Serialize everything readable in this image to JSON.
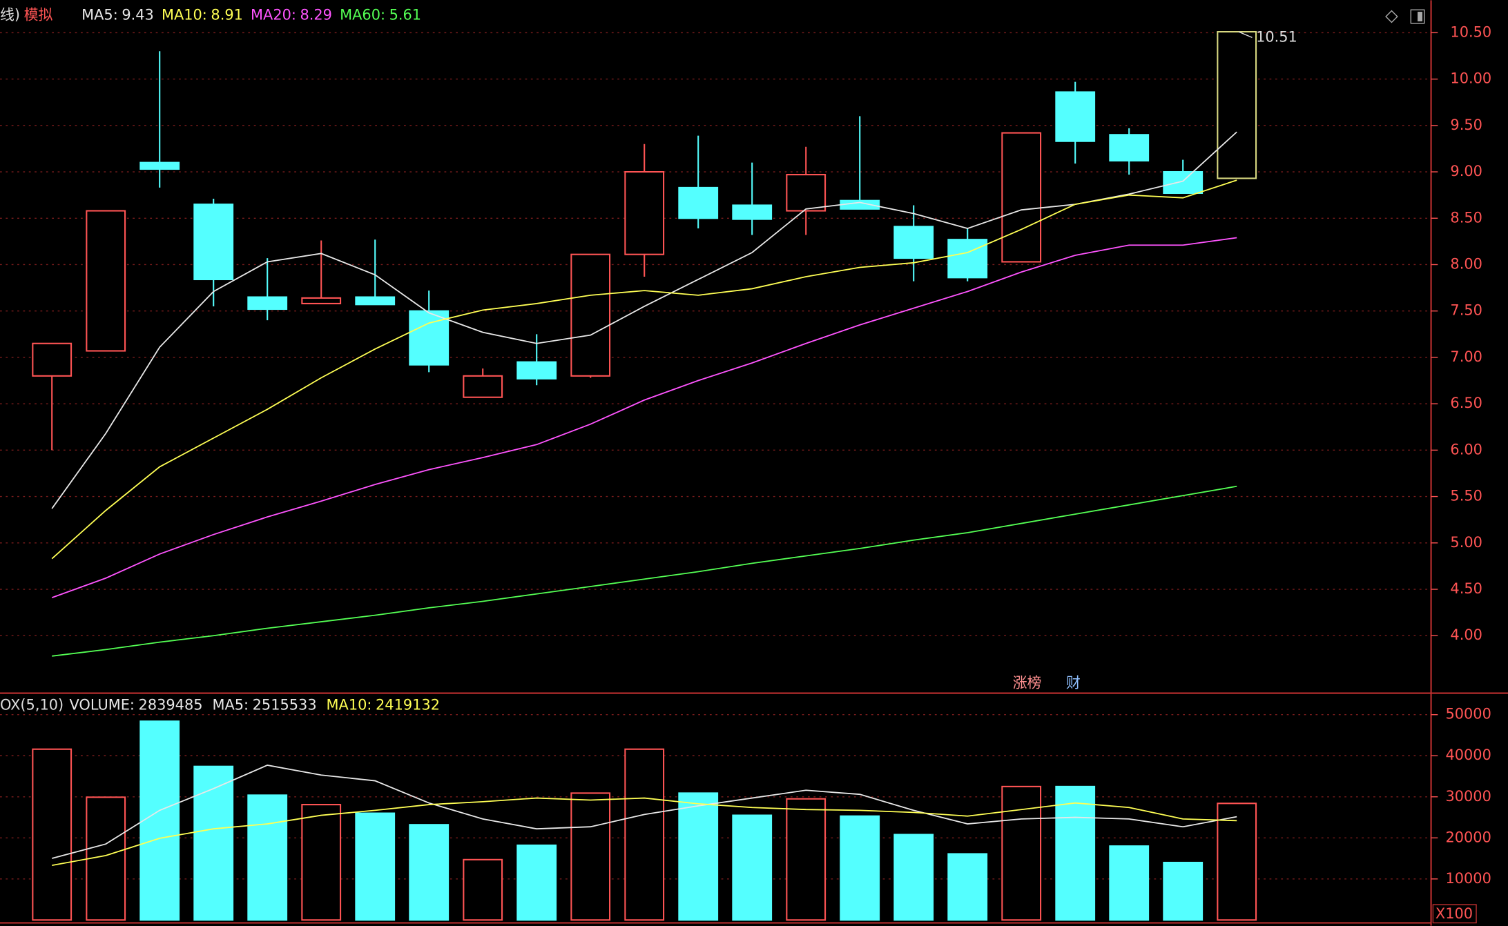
{
  "chart_data": [
    {
      "type": "candlestick",
      "prefix": "线)",
      "mode": "模拟",
      "open": [
        6.8,
        7.07,
        9.1,
        8.65,
        7.65,
        7.58,
        7.65,
        7.5,
        6.57,
        6.95,
        6.8,
        8.11,
        8.83,
        8.64,
        8.58,
        8.69,
        8.41,
        8.27,
        8.03,
        9.86,
        9.4,
        9.0,
        8.93
      ],
      "high": [
        7.15,
        8.58,
        10.3,
        8.71,
        8.07,
        8.26,
        8.27,
        7.72,
        6.88,
        7.25,
        8.11,
        9.3,
        9.39,
        9.1,
        9.27,
        9.6,
        8.64,
        8.39,
        9.42,
        9.97,
        9.47,
        9.13,
        10.51
      ],
      "low": [
        6.0,
        7.07,
        8.83,
        7.55,
        7.4,
        7.58,
        7.57,
        6.84,
        6.57,
        6.7,
        6.78,
        7.87,
        8.39,
        8.32,
        8.32,
        8.6,
        7.82,
        7.82,
        8.03,
        9.09,
        8.97,
        8.77,
        8.93
      ],
      "close": [
        7.15,
        8.58,
        9.03,
        7.84,
        7.52,
        7.64,
        7.57,
        6.92,
        6.8,
        6.77,
        8.11,
        9.0,
        8.5,
        8.49,
        8.97,
        8.6,
        8.07,
        7.86,
        9.42,
        9.33,
        9.12,
        8.77,
        10.51
      ],
      "up_color": "#ff5454",
      "down_color": "#54ffff",
      "last_candle_color": "#d8d880",
      "series": [
        {
          "name": "MA5:",
          "color": "#e8e8e8",
          "values": [
            5.37,
            6.18,
            7.11,
            7.71,
            8.03,
            8.12,
            7.89,
            7.48,
            7.27,
            7.15,
            7.24,
            7.55,
            7.84,
            8.13,
            8.6,
            8.67,
            8.55,
            8.39,
            8.59,
            8.65,
            8.76,
            8.9,
            9.43
          ]
        },
        {
          "name": "MA10:",
          "color": "#ffff54",
          "values": [
            4.83,
            5.35,
            5.82,
            6.13,
            6.44,
            6.78,
            7.09,
            7.37,
            7.51,
            7.58,
            7.67,
            7.72,
            7.67,
            7.74,
            7.87,
            7.97,
            8.02,
            8.13,
            8.38,
            8.65,
            8.75,
            8.72,
            8.91
          ]
        },
        {
          "name": "MA20:",
          "color": "#ff54ff",
          "values": [
            4.41,
            4.62,
            4.88,
            5.09,
            5.28,
            5.45,
            5.63,
            5.79,
            5.92,
            6.06,
            6.28,
            6.54,
            6.75,
            6.94,
            7.15,
            7.35,
            7.53,
            7.71,
            7.92,
            8.1,
            8.21,
            8.21,
            8.29
          ]
        },
        {
          "name": "MA60:",
          "color": "#54ff54",
          "values": [
            3.78,
            3.85,
            3.93,
            4.0,
            4.08,
            4.15,
            4.22,
            4.3,
            4.37,
            4.45,
            4.53,
            4.61,
            4.69,
            4.78,
            4.86,
            4.94,
            5.03,
            5.11,
            5.21,
            5.31,
            5.41,
            5.51,
            5.61
          ]
        }
      ],
      "ylim": [
        3.38,
        10.85
      ],
      "yticks": [
        {
          "value": 4,
          "label": "4.00"
        },
        {
          "value": 4.5,
          "label": "4.50"
        },
        {
          "value": 5,
          "label": "5.00"
        },
        {
          "value": 5.5,
          "label": "5.50"
        },
        {
          "value": 6,
          "label": "6.00"
        },
        {
          "value": 6.5,
          "label": "6.50"
        },
        {
          "value": 7,
          "label": "7.00"
        },
        {
          "value": 7.5,
          "label": "7.50"
        },
        {
          "value": 8,
          "label": "8.00"
        },
        {
          "value": 8.5,
          "label": "8.50"
        },
        {
          "value": 9,
          "label": "9.00"
        },
        {
          "value": 9.5,
          "label": "9.50"
        },
        {
          "value": 10,
          "label": "10.00"
        },
        {
          "value": 10.5,
          "label": "10.50"
        }
      ],
      "grid": true,
      "axis_color": "#ff5454",
      "buttons": [
        "涨榜",
        "财"
      ]
    },
    {
      "type": "bar",
      "title": "OX(5,10)",
      "readouts": [
        {
          "name": "VOLUME:",
          "value": 2839485,
          "color": "#e8e8e8"
        },
        {
          "name": "MA5:",
          "value": 2515533,
          "color": "#e8e8e8"
        },
        {
          "name": "MA10:",
          "value": 2419132,
          "color": "#ffff54"
        }
      ],
      "values": [
        41600,
        29900,
        48400,
        37400,
        30400,
        28100,
        26000,
        23200,
        14700,
        18200,
        30900,
        41600,
        30900,
        25500,
        29500,
        25300,
        20800,
        16100,
        32500,
        32500,
        18000,
        14000,
        28395
      ],
      "series": [
        {
          "color": "#e8e8e8",
          "values": [
            15000,
            18500,
            26700,
            32000,
            37700,
            35300,
            33900,
            28500,
            24600,
            22200,
            22700,
            25700,
            27800,
            29700,
            31600,
            30600,
            26700,
            23400,
            24600,
            25000,
            24600,
            22700,
            25155
          ]
        },
        {
          "color": "#ffff54",
          "values": [
            13300,
            15700,
            19900,
            22200,
            23400,
            25500,
            26700,
            28100,
            28800,
            29700,
            29200,
            29700,
            28300,
            27400,
            26900,
            26700,
            26200,
            25300,
            26900,
            28500,
            27400,
            24600,
            24191
          ]
        }
      ],
      "ylim": [
        0,
        55000
      ],
      "yticks": [
        10000,
        20000,
        30000,
        40000,
        50000
      ],
      "grid": true,
      "unit_label": "X100"
    }
  ]
}
